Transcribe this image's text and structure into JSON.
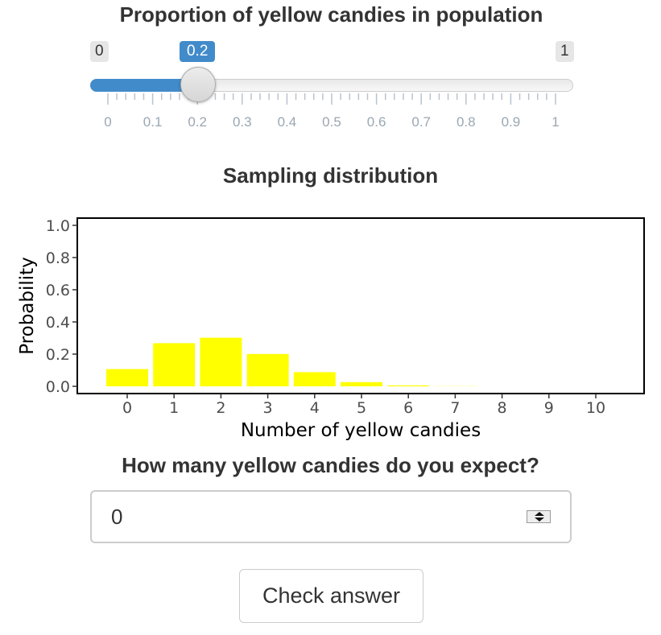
{
  "slider": {
    "title": "Proportion of yellow candies in population",
    "min": 0,
    "max": 1,
    "value": 0.2,
    "min_label": "0",
    "max_label": "1",
    "value_label": "0.2",
    "tick_labels": [
      "0",
      "0.1",
      "0.2",
      "0.3",
      "0.4",
      "0.5",
      "0.6",
      "0.7",
      "0.8",
      "0.9",
      "1"
    ],
    "accent_color": "#428bca"
  },
  "chart_title": "Sampling distribution",
  "chart_data": {
    "type": "bar",
    "title": "Sampling distribution",
    "xlabel": "Number of yellow candies",
    "ylabel": "Probability",
    "categories": [
      "0",
      "1",
      "2",
      "3",
      "4",
      "5",
      "6",
      "7",
      "8",
      "9",
      "10"
    ],
    "values": [
      0.107,
      0.268,
      0.302,
      0.201,
      0.088,
      0.026,
      0.006,
      0.001,
      0.0,
      0.0,
      0.0
    ],
    "ylim": [
      0,
      1
    ],
    "y_ticks": [
      "0.0",
      "0.2",
      "0.4",
      "0.6",
      "0.8",
      "1.0"
    ],
    "bar_color": "#ffff00",
    "grid": false
  },
  "question": {
    "title": "How many yellow candies do you expect?",
    "input_value": "0"
  },
  "check_button_label": "Check answer"
}
